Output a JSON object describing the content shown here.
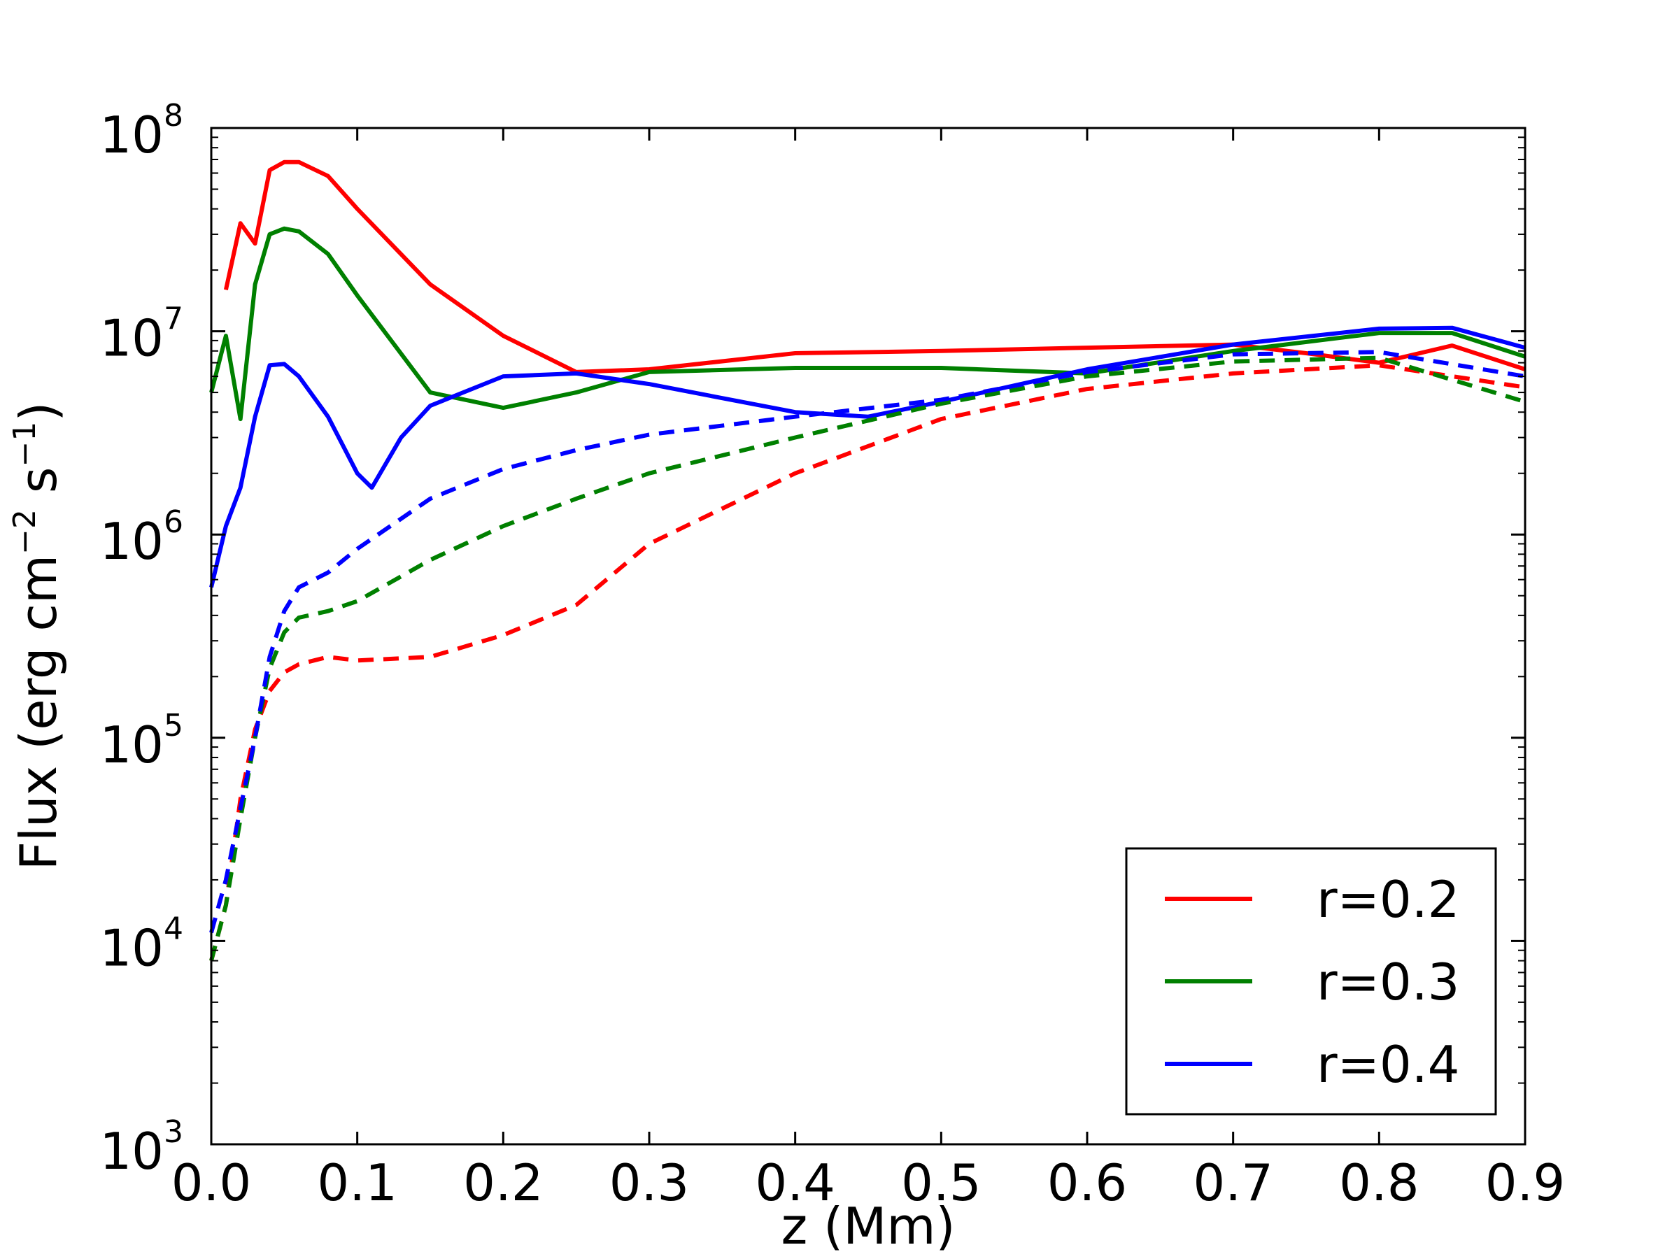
{
  "chart_data": {
    "type": "line",
    "xlabel": "z (Mm)",
    "ylabel_main": "Flux (erg cm",
    "ylabel_exp1": "−2",
    "ylabel_mid": " s",
    "ylabel_exp2": "−1",
    "ylabel_end": ")",
    "xlim": [
      0.0,
      0.9
    ],
    "ylim": [
      1000,
      100000000
    ],
    "yscale": "log",
    "xticks": [
      "0.0",
      "0.1",
      "0.2",
      "0.3",
      "0.4",
      "0.5",
      "0.6",
      "0.7",
      "0.8",
      "0.9"
    ],
    "yticks": [
      {
        "base": "10",
        "exp": "3"
      },
      {
        "base": "10",
        "exp": "4"
      },
      {
        "base": "10",
        "exp": "5"
      },
      {
        "base": "10",
        "exp": "6"
      },
      {
        "base": "10",
        "exp": "7"
      },
      {
        "base": "10",
        "exp": "8"
      }
    ],
    "legend_position": "lower-right",
    "legend": [
      {
        "label": "r=0.2",
        "color": "#ff0000"
      },
      {
        "label": "r=0.3",
        "color": "#008000"
      },
      {
        "label": "r=0.4",
        "color": "#0000ff"
      }
    ],
    "series": [
      {
        "name": "r=0.2",
        "style": "solid",
        "color": "#ff0000",
        "x": [
          0.01,
          0.02,
          0.03,
          0.04,
          0.05,
          0.06,
          0.08,
          0.1,
          0.15,
          0.2,
          0.25,
          0.3,
          0.4,
          0.5,
          0.6,
          0.7,
          0.75,
          0.8,
          0.85,
          0.9
        ],
        "y": [
          16000000.0,
          34000000.0,
          27000000.0,
          62000000.0,
          68000000.0,
          68000000.0,
          58000000.0,
          40000000.0,
          17000000.0,
          9500000.0,
          6300000.0,
          6500000.0,
          7800000.0,
          8000000.0,
          8300000.0,
          8600000.0,
          7800000.0,
          7000000.0,
          8500000.0,
          6500000.0
        ]
      },
      {
        "name": "r=0.3",
        "style": "solid",
        "color": "#008000",
        "x": [
          0.0,
          0.01,
          0.02,
          0.03,
          0.04,
          0.05,
          0.06,
          0.08,
          0.1,
          0.15,
          0.2,
          0.25,
          0.3,
          0.4,
          0.5,
          0.6,
          0.7,
          0.8,
          0.85,
          0.9
        ],
        "y": [
          5000000.0,
          9500000.0,
          3700000.0,
          17000000.0,
          30000000.0,
          32000000.0,
          31000000.0,
          24000000.0,
          15000000.0,
          5000000.0,
          4200000.0,
          5000000.0,
          6300000.0,
          6600000.0,
          6600000.0,
          6200000.0,
          8000000.0,
          9800000.0,
          9800000.0,
          7500000.0
        ]
      },
      {
        "name": "r=0.4",
        "style": "solid",
        "color": "#0000ff",
        "x": [
          0.0,
          0.01,
          0.02,
          0.03,
          0.04,
          0.05,
          0.06,
          0.08,
          0.1,
          0.11,
          0.13,
          0.15,
          0.2,
          0.25,
          0.3,
          0.4,
          0.45,
          0.5,
          0.6,
          0.7,
          0.8,
          0.85,
          0.9
        ],
        "y": [
          550000.0,
          1100000.0,
          1700000.0,
          3800000.0,
          6800000.0,
          6900000.0,
          6000000.0,
          3800000.0,
          2000000.0,
          1700000.0,
          3000000.0,
          4300000.0,
          6000000.0,
          6200000.0,
          5500000.0,
          4000000.0,
          3800000.0,
          4500000.0,
          6500000.0,
          8600000.0,
          10300000.0,
          10400000.0,
          8300000.0
        ]
      },
      {
        "name": "r=0.2",
        "style": "dashed",
        "color": "#ff0000",
        "x": [
          0.0,
          0.01,
          0.02,
          0.03,
          0.04,
          0.05,
          0.06,
          0.08,
          0.1,
          0.15,
          0.2,
          0.25,
          0.3,
          0.4,
          0.5,
          0.6,
          0.7,
          0.8,
          0.9
        ],
        "y": [
          8000.0,
          15000.0,
          50000.0,
          110000.0,
          170000.0,
          210000.0,
          230000.0,
          250000.0,
          240000.0,
          250000.0,
          320000.0,
          450000.0,
          900000.0,
          2000000.0,
          3700000.0,
          5200000.0,
          6200000.0,
          6800000.0,
          5300000.0
        ]
      },
      {
        "name": "r=0.3",
        "style": "dashed",
        "color": "#008000",
        "x": [
          0.0,
          0.01,
          0.02,
          0.03,
          0.04,
          0.05,
          0.06,
          0.08,
          0.1,
          0.15,
          0.2,
          0.25,
          0.3,
          0.4,
          0.5,
          0.6,
          0.7,
          0.8,
          0.9
        ],
        "y": [
          8000.0,
          15000.0,
          40000.0,
          100000.0,
          220000.0,
          330000.0,
          390000.0,
          420000.0,
          470000.0,
          750000.0,
          1100000.0,
          1500000.0,
          2000000.0,
          3000000.0,
          4400000.0,
          6000000.0,
          7100000.0,
          7400000.0,
          4500000.0
        ]
      },
      {
        "name": "r=0.4",
        "style": "dashed",
        "color": "#0000ff",
        "x": [
          0.0,
          0.01,
          0.02,
          0.03,
          0.04,
          0.05,
          0.06,
          0.08,
          0.1,
          0.15,
          0.2,
          0.25,
          0.3,
          0.4,
          0.5,
          0.6,
          0.7,
          0.8,
          0.9
        ],
        "y": [
          11000.0,
          20000.0,
          45000.0,
          100000.0,
          250000.0,
          420000.0,
          550000.0,
          650000.0,
          850000.0,
          1500000.0,
          2100000.0,
          2600000.0,
          3100000.0,
          3800000.0,
          4600000.0,
          6300000.0,
          7700000.0,
          7900000.0,
          6000000.0
        ]
      }
    ]
  }
}
